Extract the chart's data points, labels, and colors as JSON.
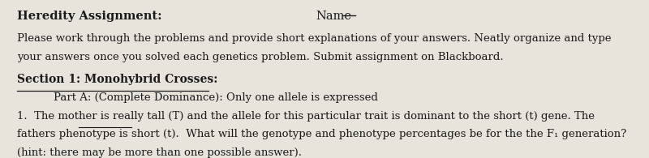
{
  "bg_color": "#e8e4dc",
  "text_color": "#1a1a1a",
  "title_bold": "Heredity Assignment:",
  "name_label": "Name",
  "line1": "Please work through the problems and provide short explanations of your answers. Neatly organize and type",
  "line2": "your answers once you solved each genetics problem. Submit assignment on Blackboard.",
  "section_heading": "Section 1: Monohybrid Crosses:",
  "part_a": "Part A: (Complete Dominance): Only one allele is expressed",
  "problem_line1": "1.  The mother is really tall (T) and the allele for this particular trait is dominant to the short (t) gene. The",
  "problem_line2": "fathers phenotype is short (t).  What will the genotype and phenotype percentages be for the the F₁ generation?",
  "problem_line3": "(hint: there may be more than one possible answer).",
  "font_size_title": 10.5,
  "font_size_body": 9.5,
  "font_size_section": 10.0
}
